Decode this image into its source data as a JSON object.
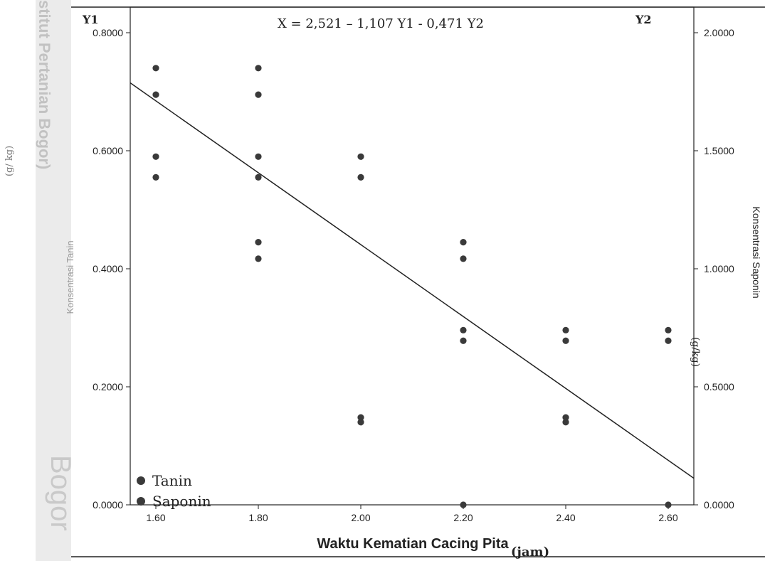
{
  "watermark": {
    "text": "stitut Pertanian Bogor)",
    "bogor": "Bogor"
  },
  "left_unit_label": "(g/ kg)",
  "chart_data": {
    "type": "scatter",
    "title": "X = 2,521 – 1,107 Y1 - 0,471 Y2",
    "xlabel": "Waktu Kematian Cacing Pita",
    "xlabel_unit": "(jam)",
    "ylabel_left": "Konsentrasi Tanin",
    "ylabel_right": "Konsentrasi Saponin",
    "y_left_unit": "(g/kg)",
    "y1_tag": "Y1",
    "y2_tag": "Y2",
    "xlim": [
      1.55,
      2.65
    ],
    "ylim_left": [
      0,
      0.8
    ],
    "ylim_right": [
      0,
      2.0
    ],
    "x_ticks": [
      "1.60",
      "1.80",
      "2.00",
      "2.20",
      "2.40",
      "2.60"
    ],
    "y_left_ticks": [
      "0.0000",
      "0.2000",
      "0.4000",
      "0.6000",
      "0.8000"
    ],
    "y_right_ticks": [
      "0.0000",
      "0.5000",
      "1.0000",
      "1.5000",
      "2.0000"
    ],
    "legend_position": "bottom-left",
    "series": [
      {
        "name": "Tanin",
        "color": "#3a3a3a",
        "points": [
          [
            1.6,
            0.74
          ],
          [
            1.6,
            0.695
          ],
          [
            1.6,
            0.59
          ],
          [
            1.6,
            0.555
          ],
          [
            1.8,
            0.74
          ],
          [
            1.8,
            0.695
          ],
          [
            1.8,
            0.59
          ],
          [
            1.8,
            0.555
          ],
          [
            1.8,
            0.445
          ],
          [
            1.8,
            0.417
          ],
          [
            2.0,
            0.59
          ],
          [
            2.0,
            0.555
          ],
          [
            2.0,
            0.148
          ],
          [
            2.0,
            0.14
          ],
          [
            2.2,
            0.445
          ],
          [
            2.2,
            0.417
          ],
          [
            2.2,
            0.296
          ],
          [
            2.2,
            0.278
          ],
          [
            2.2,
            0.0
          ],
          [
            2.4,
            0.296
          ],
          [
            2.4,
            0.278
          ],
          [
            2.4,
            0.148
          ],
          [
            2.4,
            0.14
          ],
          [
            2.6,
            0.296
          ],
          [
            2.6,
            0.278
          ],
          [
            2.6,
            0.0
          ]
        ]
      },
      {
        "name": "Saponin",
        "color": "#3a3a3a",
        "points": []
      }
    ],
    "regression_line": {
      "x": [
        1.55,
        2.65
      ],
      "y": [
        0.715,
        0.045
      ]
    }
  }
}
